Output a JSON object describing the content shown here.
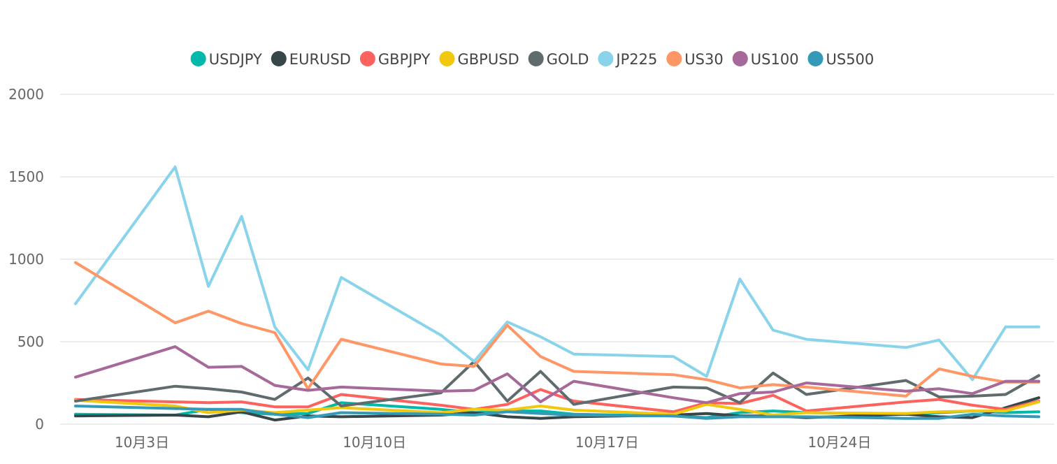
{
  "chart_data": {
    "type": "line",
    "title": "",
    "xlabel": "",
    "ylabel": "",
    "ylim": [
      0,
      2000
    ],
    "yticks": [
      0,
      500,
      1000,
      1500,
      2000
    ],
    "grid": true,
    "legend_position": "top-center",
    "x": [
      "10月1日",
      "10月4日",
      "10月5日",
      "10月6日",
      "10月7日",
      "10月8日",
      "10月9日",
      "10月12日",
      "10月13日",
      "10月14日",
      "10月15日",
      "10月16日",
      "10月19日",
      "10月20日",
      "10月21日",
      "10月22日",
      "10月23日",
      "10月26日",
      "10月27日",
      "10月28日",
      "10月29日",
      "10月30日"
    ],
    "xticks": [
      {
        "date": "10月3日",
        "label": "10月3日"
      },
      {
        "date": "10月10日",
        "label": "10月10日"
      },
      {
        "date": "10月17日",
        "label": "10月17日"
      },
      {
        "date": "10月24日",
        "label": "10月24日"
      }
    ],
    "series": [
      {
        "name": "USDJPY",
        "color": "#01B8AA",
        "values": [
          60,
          55,
          90,
          70,
          60,
          65,
          130,
          90,
          70,
          80,
          80,
          60,
          50,
          40,
          70,
          80,
          70,
          60,
          70,
          80,
          70,
          75
        ]
      },
      {
        "name": "EURUSD",
        "color": "#374649",
        "values": [
          50,
          55,
          45,
          75,
          25,
          50,
          45,
          55,
          70,
          45,
          35,
          45,
          55,
          65,
          50,
          50,
          40,
          60,
          45,
          40,
          100,
          160
        ]
      },
      {
        "name": "GBPJPY",
        "color": "#FD625E",
        "values": [
          150,
          135,
          130,
          135,
          105,
          105,
          180,
          115,
          90,
          120,
          210,
          140,
          75,
          130,
          125,
          175,
          80,
          135,
          150,
          115,
          90,
          140
        ]
      },
      {
        "name": "GBPUSD",
        "color": "#F2C80F",
        "values": [
          145,
          110,
          70,
          85,
          70,
          85,
          100,
          70,
          90,
          85,
          110,
          85,
          60,
          120,
          90,
          55,
          70,
          65,
          75,
          80,
          80,
          135
        ]
      },
      {
        "name": "GOLD",
        "color": "#5F6B6D",
        "values": [
          140,
          230,
          215,
          195,
          150,
          280,
          110,
          190,
          380,
          140,
          320,
          120,
          225,
          220,
          130,
          310,
          180,
          265,
          165,
          170,
          180,
          295
        ]
      },
      {
        "name": "JP225",
        "color": "#8AD4EB",
        "values": [
          730,
          1560,
          835,
          1260,
          590,
          330,
          890,
          540,
          380,
          620,
          530,
          425,
          410,
          290,
          880,
          570,
          515,
          465,
          510,
          270,
          590,
          590
        ]
      },
      {
        "name": "US30",
        "color": "#FE9666",
        "values": [
          980,
          615,
          685,
          610,
          555,
          215,
          515,
          365,
          350,
          600,
          410,
          320,
          300,
          270,
          220,
          240,
          225,
          170,
          335,
          290,
          255,
          255
        ]
      },
      {
        "name": "US100",
        "color": "#A66999",
        "values": [
          285,
          470,
          345,
          350,
          235,
          205,
          225,
          200,
          205,
          305,
          135,
          260,
          160,
          130,
          185,
          195,
          250,
          200,
          215,
          185,
          260,
          260
        ]
      },
      {
        "name": "US500",
        "color": "#3599B8",
        "values": [
          110,
          95,
          90,
          90,
          60,
          40,
          70,
          60,
          55,
          75,
          65,
          55,
          50,
          35,
          45,
          45,
          45,
          35,
          35,
          60,
          50,
          45
        ]
      }
    ]
  }
}
